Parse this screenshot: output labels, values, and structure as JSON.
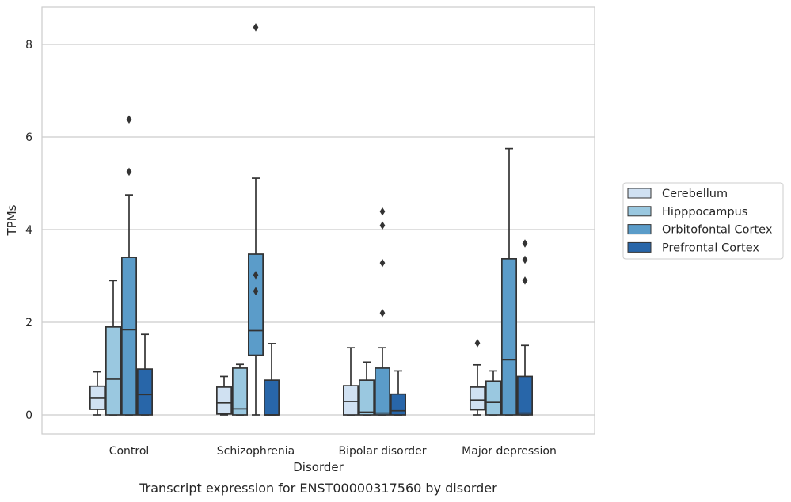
{
  "chart_data": {
    "type": "box",
    "title": "",
    "caption": "Transcript expression for ENST00000317560 by disorder",
    "xlabel": "Disorder",
    "ylabel": "TPMs",
    "ylim": [
      -0.4,
      8.8
    ],
    "yticks": [
      0,
      2,
      4,
      6,
      8
    ],
    "grid": "horizontal",
    "legend_placement": "right",
    "categories": [
      "Control",
      "Schizophrenia",
      "Bipolar disorder",
      "Major depression"
    ],
    "series": [
      {
        "name": "Cerebellum",
        "color": "#d0e1f2",
        "boxes": [
          {
            "whislo": 0.0,
            "q1": 0.12,
            "med": 0.36,
            "q3": 0.62,
            "whishi": 0.93,
            "fliers": []
          },
          {
            "whislo": 0.0,
            "q1": 0.02,
            "med": 0.26,
            "q3": 0.6,
            "whishi": 0.83,
            "fliers": []
          },
          {
            "whislo": 0.0,
            "q1": 0.0,
            "med": 0.29,
            "q3": 0.63,
            "whishi": 1.45,
            "fliers": []
          },
          {
            "whislo": 0.0,
            "q1": 0.11,
            "med": 0.32,
            "q3": 0.6,
            "whishi": 1.08,
            "fliers": [
              1.55
            ]
          }
        ]
      },
      {
        "name": "Hipppocampus",
        "color": "#9ac8e0",
        "boxes": [
          {
            "whislo": 0.0,
            "q1": 0.0,
            "med": 0.77,
            "q3": 1.9,
            "whishi": 2.9,
            "fliers": []
          },
          {
            "whislo": 0.0,
            "q1": 0.0,
            "med": 0.13,
            "q3": 1.01,
            "whishi": 1.09,
            "fliers": []
          },
          {
            "whislo": 0.0,
            "q1": 0.0,
            "med": 0.06,
            "q3": 0.75,
            "whishi": 1.14,
            "fliers": []
          },
          {
            "whislo": 0.0,
            "q1": 0.0,
            "med": 0.27,
            "q3": 0.73,
            "whishi": 0.95,
            "fliers": []
          }
        ]
      },
      {
        "name": "Orbitofontal Cortex",
        "color": "#5b9cc9",
        "boxes": [
          {
            "whislo": 0.0,
            "q1": 0.0,
            "med": 1.84,
            "q3": 3.4,
            "whishi": 4.75,
            "fliers": [
              5.25,
              6.38
            ]
          },
          {
            "whislo": 0.0,
            "q1": 1.29,
            "med": 1.82,
            "q3": 3.47,
            "whishi": 5.11,
            "fliers": [
              2.67,
              3.02,
              8.37
            ]
          },
          {
            "whislo": 0.0,
            "q1": 0.0,
            "med": 0.04,
            "q3": 1.01,
            "whishi": 1.45,
            "fliers": [
              2.2,
              3.28,
              4.09,
              4.39
            ]
          },
          {
            "whislo": 0.0,
            "q1": 0.0,
            "med": 1.19,
            "q3": 3.37,
            "whishi": 5.75,
            "fliers": []
          }
        ]
      },
      {
        "name": "Prefrontal Cortex",
        "color": "#2866a9",
        "boxes": [
          {
            "whislo": 0.0,
            "q1": 0.0,
            "med": 0.44,
            "q3": 0.99,
            "whishi": 1.74,
            "fliers": []
          },
          {
            "whislo": 0.0,
            "q1": 0.0,
            "med": 0.0,
            "q3": 0.75,
            "whishi": 1.54,
            "fliers": []
          },
          {
            "whislo": 0.0,
            "q1": 0.0,
            "med": 0.09,
            "q3": 0.45,
            "whishi": 0.95,
            "fliers": []
          },
          {
            "whislo": 0.0,
            "q1": 0.0,
            "med": 0.04,
            "q3": 0.83,
            "whishi": 1.5,
            "fliers": [
              2.9,
              3.35,
              3.7
            ]
          }
        ]
      }
    ]
  }
}
